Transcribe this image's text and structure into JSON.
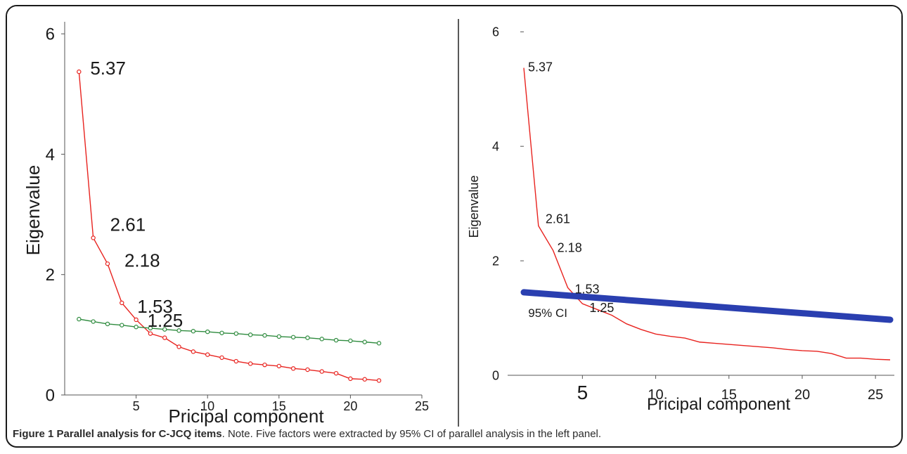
{
  "chart_data": [
    {
      "type": "line",
      "xlabel": "Pricipal component",
      "ylabel": "Eigenvalue",
      "xlim": [
        0,
        25
      ],
      "ylim": [
        0,
        6.2
      ],
      "xticks": [
        5,
        10,
        15,
        20,
        25
      ],
      "yticks": [
        0,
        2,
        4,
        6
      ],
      "colors": {
        "eigen": "#e8231f",
        "parallel": "#2e8b3e"
      },
      "series": [
        {
          "key": "eigen",
          "x": [
            1,
            2,
            3,
            4,
            5,
            6,
            7,
            8,
            9,
            10,
            11,
            12,
            13,
            14,
            15,
            16,
            17,
            18,
            19,
            20,
            21,
            22
          ],
          "values": [
            5.37,
            2.61,
            2.18,
            1.53,
            1.25,
            1.02,
            0.95,
            0.8,
            0.72,
            0.67,
            0.62,
            0.56,
            0.52,
            0.5,
            0.48,
            0.44,
            0.42,
            0.39,
            0.36,
            0.27,
            0.26,
            0.24
          ]
        },
        {
          "key": "parallel",
          "x": [
            1,
            2,
            3,
            4,
            5,
            6,
            7,
            8,
            9,
            10,
            11,
            12,
            13,
            14,
            15,
            16,
            17,
            18,
            19,
            20,
            21,
            22
          ],
          "values": [
            1.26,
            1.22,
            1.18,
            1.16,
            1.13,
            1.11,
            1.09,
            1.07,
            1.06,
            1.05,
            1.03,
            1.02,
            1.0,
            0.99,
            0.97,
            0.96,
            0.95,
            0.93,
            0.91,
            0.9,
            0.88,
            0.86
          ]
        }
      ],
      "annotations": [
        {
          "text": "5.37",
          "x": 1,
          "y": 5.37
        },
        {
          "text": "2.61",
          "x": 2,
          "y": 2.61
        },
        {
          "text": "2.18",
          "x": 3,
          "y": 2.18
        },
        {
          "text": "1.53",
          "x": 4,
          "y": 1.53
        },
        {
          "text": "1.25",
          "x": 5,
          "y": 1.25
        }
      ]
    },
    {
      "type": "line",
      "xlabel": "Pricipal component",
      "ylabel": "Eigenvalue",
      "xlim": [
        1,
        26
      ],
      "ylim": [
        0,
        6.2
      ],
      "xticks": [
        5,
        10,
        15,
        20,
        25
      ],
      "yticks": [
        0,
        2,
        4,
        6
      ],
      "colors": {
        "eigen": "#e8231f",
        "ci": "#2a3fb0"
      },
      "series": [
        {
          "key": "eigen",
          "x": [
            1,
            2,
            3,
            4,
            5,
            6,
            7,
            8,
            9,
            10,
            11,
            12,
            13,
            14,
            15,
            16,
            17,
            18,
            19,
            20,
            21,
            22,
            23,
            24,
            25,
            26
          ],
          "values": [
            5.37,
            2.61,
            2.18,
            1.53,
            1.25,
            1.15,
            1.05,
            0.9,
            0.8,
            0.72,
            0.68,
            0.65,
            0.58,
            0.56,
            0.54,
            0.52,
            0.5,
            0.48,
            0.45,
            0.43,
            0.42,
            0.38,
            0.3,
            0.3,
            0.28,
            0.27
          ]
        },
        {
          "key": "ci",
          "name": "95% CI",
          "x": [
            1,
            26
          ],
          "values": [
            1.45,
            0.97
          ]
        }
      ],
      "annotations": [
        {
          "text": "5.37",
          "x": 1,
          "y": 5.37
        },
        {
          "text": "2.61",
          "x": 2,
          "y": 2.61
        },
        {
          "text": "2.18",
          "x": 3,
          "y": 2.18
        },
        {
          "text": "1.53",
          "x": 4,
          "y": 1.53
        },
        {
          "text": "1.25",
          "x": 5,
          "y": 1.25
        }
      ]
    }
  ],
  "caption": {
    "lead": "Figure 1 Parallel analysis for C-JCQ items",
    "rest": ". Note. Five factors were extracted by 95% CI of parallel analysis in the left panel."
  }
}
